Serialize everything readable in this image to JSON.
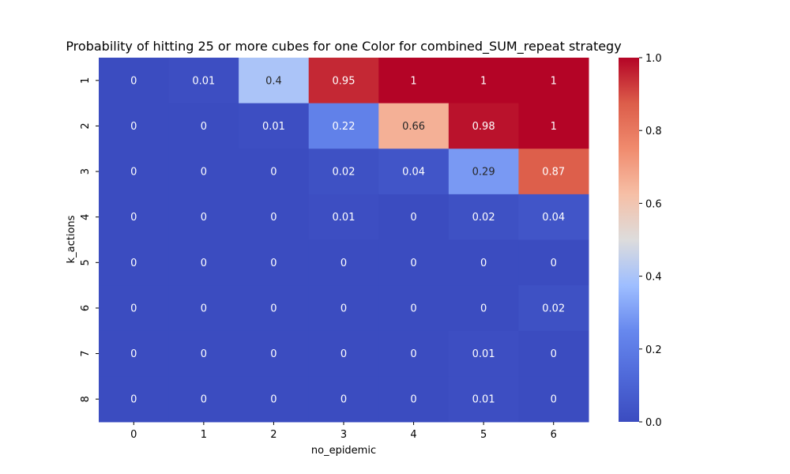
{
  "chart_data": {
    "type": "heatmap",
    "title": "Probability of hitting 25 or more cubes for one Color for combined_SUM_repeat strategy",
    "xlabel": "no_epidemic",
    "ylabel": "k_actions",
    "x": [
      "0",
      "1",
      "2",
      "3",
      "4",
      "5",
      "6"
    ],
    "y": [
      "1",
      "2",
      "3",
      "4",
      "5",
      "6",
      "7",
      "8"
    ],
    "values": [
      [
        0,
        0.01,
        0.4,
        0.95,
        1,
        1,
        1
      ],
      [
        0,
        0,
        0.01,
        0.22,
        0.66,
        0.98,
        1
      ],
      [
        0,
        0,
        0,
        0.02,
        0.04,
        0.29,
        0.87
      ],
      [
        0,
        0,
        0,
        0.01,
        0,
        0.02,
        0.04
      ],
      [
        0,
        0,
        0,
        0,
        0,
        0,
        0
      ],
      [
        0,
        0,
        0,
        0,
        0,
        0,
        0.02
      ],
      [
        0,
        0,
        0,
        0,
        0,
        0.01,
        0
      ],
      [
        0,
        0,
        0,
        0,
        0,
        0.01,
        0
      ]
    ],
    "colormap": "coolwarm",
    "vmin": 0,
    "vmax": 1,
    "colorbar_ticks": [
      "0.0",
      "0.2",
      "0.4",
      "0.6",
      "0.8",
      "1.0"
    ],
    "grid": false,
    "legend": "colorbar-right"
  }
}
